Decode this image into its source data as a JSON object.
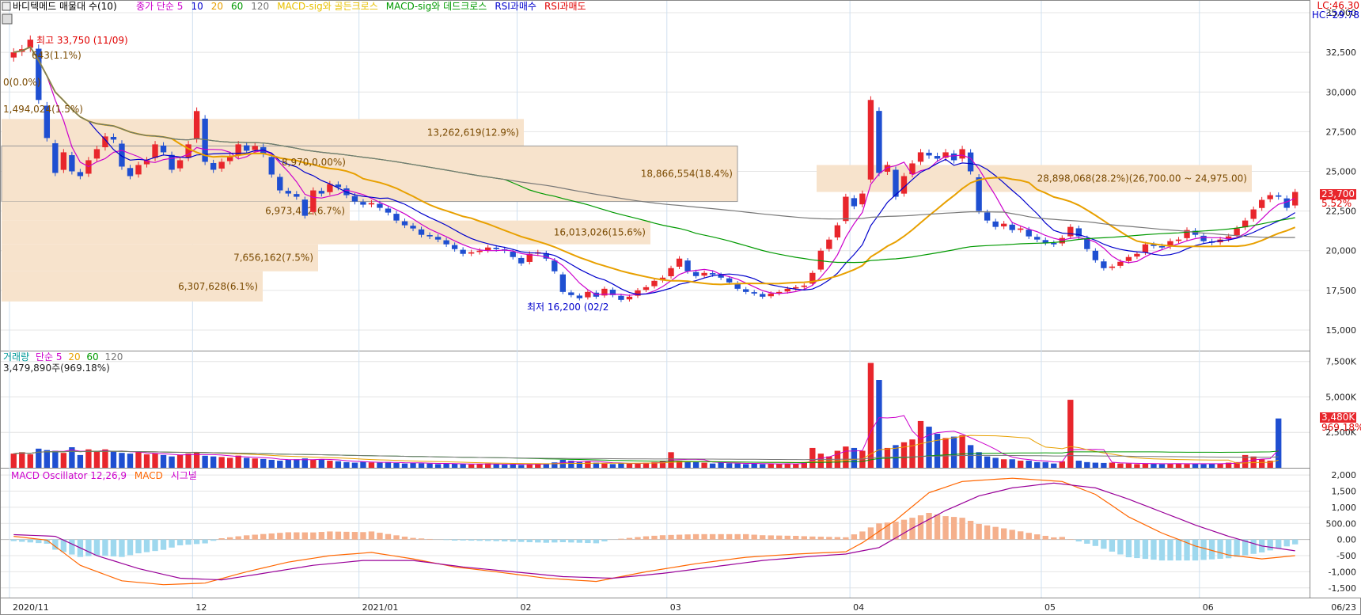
{
  "header": {
    "indicator_title": "바디텍메드 매물대 수(10)",
    "legend": [
      {
        "text": "종가 단순 5",
        "color": "#cc00cc"
      },
      {
        "text": "10",
        "color": "#0000cc"
      },
      {
        "text": "20",
        "color": "#e8a000"
      },
      {
        "text": "60",
        "color": "#009900"
      },
      {
        "text": "120",
        "color": "#777777"
      },
      {
        "text": "MACD-sig와 골든크로스",
        "color": "#e8c000"
      },
      {
        "text": "MACD-sig와 데드크로스",
        "color": "#009900"
      },
      {
        "text": "RSI과매수",
        "color": "#0000cc"
      },
      {
        "text": "RSI과매도",
        "color": "#e00000"
      }
    ],
    "lc": "LC:46.30",
    "hc": "HC:-29.78"
  },
  "annotations": {
    "high": "최고 33,750 (11/09)",
    "low": "최저 16,200 (02/2",
    "current_price": "23,700",
    "current_pct": "5.52%",
    "partial": [
      "643(1.1%)",
      "0(0.0%)",
      "1,494,024(1.5%)",
      "8,970,0.00%)"
    ]
  },
  "volume_panel": {
    "legend": [
      {
        "text": "거래량",
        "color": "#009999"
      },
      {
        "text": "단순 5",
        "color": "#cc00cc"
      },
      {
        "text": "20",
        "color": "#e8a000"
      },
      {
        "text": "60",
        "color": "#009900"
      },
      {
        "text": "120",
        "color": "#777777"
      }
    ],
    "current": "3,479,890주(969.18%)",
    "badge": "3,480K",
    "badge_pct": "969.18%"
  },
  "macd_panel": {
    "legend": [
      {
        "text": "MACD Oscillator 12,26,9",
        "color": "#cc00cc"
      },
      {
        "text": "MACD",
        "color": "#ff6600"
      },
      {
        "text": "시그널",
        "color": "#cc00cc"
      }
    ]
  },
  "x_axis": {
    "labels": [
      "2020/11",
      "12",
      "2021/01",
      "02",
      "03",
      "04",
      "05",
      "06",
      "06/23"
    ]
  },
  "colors": {
    "up": "#e8262c",
    "down": "#1f4fd1",
    "ma5": "#cc00cc",
    "ma10": "#0000cc",
    "ma20": "#e8a000",
    "ma60": "#009900",
    "ma120": "#777777",
    "vp": "#f7e3cc"
  },
  "chart_data": [
    {
      "type": "candlestick",
      "title": "바디텍메드",
      "y_ticks": [
        15000,
        17500,
        20000,
        22500,
        25000,
        27500,
        30000,
        32500,
        35000
      ],
      "y_tick_labels": [
        "15,000",
        "17,500",
        "20,000",
        "22,500",
        "25,000",
        "27,500",
        "30,000",
        "32,500",
        "35,000"
      ],
      "ylim": [
        13700,
        35700
      ],
      "volume_profile": [
        {
          "price_from": 26600,
          "price_to": 28300,
          "label": "13,262,619(12.9%)"
        },
        {
          "price_from": 23100,
          "price_to": 26600,
          "label": "18,866,554(18.4%)"
        },
        {
          "price_from": 21900,
          "price_to": 23100,
          "label": "6,973,412(6.7%)"
        },
        {
          "price_from": 20400,
          "price_to": 21900,
          "label": "16,013,026(15.6%)"
        },
        {
          "price_from": 18700,
          "price_to": 20400,
          "label": "7,656,162(7.5%)"
        },
        {
          "price_from": 16800,
          "price_to": 18700,
          "label": "6,307,628(6.1%)"
        },
        {
          "price_from": 23700,
          "price_to": 25400,
          "label": "28,898,068(28.2%)(26,700.00 ~ 24,975.00)"
        }
      ],
      "closes": [
        32500,
        32700,
        33300,
        29500,
        27100,
        24900,
        26200,
        25000,
        24700,
        25700,
        26400,
        27200,
        27000,
        25300,
        24700,
        25400,
        25700,
        26700,
        26200,
        25100,
        25700,
        26700,
        28800,
        25600,
        25100,
        25600,
        25900,
        26700,
        26300,
        26600,
        26100,
        24800,
        23800,
        23600,
        23400,
        22200,
        23800,
        23600,
        24200,
        24000,
        23500,
        23100,
        22900,
        23000,
        22700,
        22400,
        21900,
        21600,
        21400,
        21000,
        20900,
        20700,
        20400,
        20100,
        19800,
        19900,
        20000,
        20200,
        20100,
        20000,
        19600,
        19200,
        19800,
        19900,
        19500,
        18700,
        17400,
        17200,
        17000,
        17400,
        17100,
        17600,
        17200,
        16900,
        17100,
        17500,
        17700,
        18100,
        18300,
        18900,
        19500,
        18700,
        18400,
        18600,
        18500,
        18300,
        18000,
        17600,
        17400,
        17300,
        17100,
        17300,
        17400,
        17600,
        17700,
        17800,
        18600,
        20000,
        20700,
        21600,
        23400,
        22800,
        23600,
        29500,
        24900,
        25400,
        23400,
        24700,
        25500,
        26200,
        26000,
        25800,
        26200,
        25700,
        26400,
        25000,
        22500,
        21900,
        21500,
        21700,
        21300,
        21400,
        20900,
        20700,
        20500,
        20400,
        20800,
        21500,
        20900,
        20100,
        19400,
        18900,
        19000,
        19300,
        19600,
        19800,
        20400,
        20300,
        20200,
        20600,
        20700,
        21300,
        21000,
        20600,
        20500,
        20700,
        20900,
        21400,
        21900,
        22600,
        23200,
        23500,
        23400,
        22700,
        23700
      ],
      "volume_k": [
        1000,
        1100,
        950,
        1350,
        1250,
        1200,
        1050,
        1450,
        900,
        1300,
        1150,
        1300,
        1150,
        1050,
        1000,
        1100,
        950,
        1000,
        900,
        800,
        900,
        1000,
        1100,
        850,
        800,
        760,
        700,
        860,
        700,
        660,
        620,
        560,
        500,
        560,
        600,
        660,
        560,
        600,
        500,
        460,
        400,
        360,
        420,
        380,
        360,
        400,
        340,
        300,
        360,
        320,
        300,
        260,
        300,
        280,
        260,
        240,
        260,
        300,
        260,
        220,
        240,
        200,
        260,
        300,
        300,
        380,
        560,
        500,
        400,
        460,
        360,
        300,
        260,
        320,
        300,
        340,
        360,
        400,
        500,
        1100,
        500,
        460,
        400,
        360,
        300,
        360,
        320,
        300,
        260,
        300,
        260,
        300,
        260,
        300,
        260,
        400,
        1400,
        1000,
        800,
        1200,
        1500,
        1400,
        1200,
        7400,
        6200,
        1400,
        1600,
        1800,
        2000,
        3300,
        2900,
        2400,
        2100,
        2200,
        2300,
        1600,
        1100,
        800,
        700,
        600,
        600,
        500,
        500,
        400,
        400,
        300,
        460,
        4800,
        500,
        400,
        360,
        340,
        360,
        300,
        300,
        260,
        300,
        300,
        260,
        300,
        300,
        260,
        300,
        260,
        300,
        300,
        360,
        400,
        900,
        800,
        600,
        500,
        3480
      ]
    },
    {
      "type": "bar",
      "title": "거래량",
      "unit": "K",
      "y_ticks": [
        2500,
        5000,
        7500
      ],
      "y_tick_labels": [
        "2,500K",
        "5,000K",
        "7,500K"
      ],
      "ylim": [
        0,
        8100
      ]
    },
    {
      "type": "line",
      "title": "MACD Oscillator 12,26,9",
      "y_ticks": [
        -1500,
        -1000,
        -500,
        0,
        500,
        1000,
        1500,
        2000
      ],
      "y_tick_labels": [
        "-1,500",
        "-1,000",
        "-500",
        "0.00",
        "500.00",
        "1,000",
        "1,500",
        "2,000"
      ],
      "ylim": [
        -1800,
        2150
      ],
      "series": [
        {
          "name": "MACD",
          "points": [
            [
              0,
              100
            ],
            [
              4,
              -20
            ],
            [
              8,
              -800
            ],
            [
              13,
              -1280
            ],
            [
              18,
              -1400
            ],
            [
              23,
              -1350
            ],
            [
              28,
              -1000
            ],
            [
              33,
              -700
            ],
            [
              38,
              -500
            ],
            [
              43,
              -400
            ],
            [
              48,
              -600
            ],
            [
              53,
              -850
            ],
            [
              58,
              -1000
            ],
            [
              64,
              -1200
            ],
            [
              70,
              -1300
            ],
            [
              76,
              -1000
            ],
            [
              82,
              -750
            ],
            [
              88,
              -550
            ],
            [
              94,
              -450
            ],
            [
              100,
              -380
            ],
            [
              102,
              -100
            ],
            [
              106,
              600
            ],
            [
              110,
              1450
            ],
            [
              114,
              1800
            ],
            [
              120,
              1900
            ],
            [
              126,
              1800
            ],
            [
              130,
              1400
            ],
            [
              134,
              700
            ],
            [
              138,
              200
            ],
            [
              142,
              -200
            ],
            [
              146,
              -480
            ],
            [
              150,
              -600
            ],
            [
              154,
              -500
            ],
            [
              158,
              -350
            ],
            [
              162,
              -200
            ],
            [
              166,
              -50
            ],
            [
              169,
              150
            ],
            [
              172,
              400
            ],
            [
              174,
              550
            ]
          ]
        },
        {
          "name": "시그널",
          "points": [
            [
              0,
              150
            ],
            [
              5,
              100
            ],
            [
              10,
              -500
            ],
            [
              15,
              -900
            ],
            [
              20,
              -1200
            ],
            [
              25,
              -1250
            ],
            [
              30,
              -1050
            ],
            [
              36,
              -800
            ],
            [
              42,
              -650
            ],
            [
              48,
              -650
            ],
            [
              54,
              -850
            ],
            [
              60,
              -1000
            ],
            [
              66,
              -1150
            ],
            [
              72,
              -1200
            ],
            [
              78,
              -1050
            ],
            [
              84,
              -850
            ],
            [
              90,
              -650
            ],
            [
              96,
              -520
            ],
            [
              100,
              -450
            ],
            [
              104,
              -250
            ],
            [
              108,
              350
            ],
            [
              112,
              900
            ],
            [
              116,
              1350
            ],
            [
              120,
              1600
            ],
            [
              125,
              1750
            ],
            [
              130,
              1600
            ],
            [
              134,
              1250
            ],
            [
              138,
              850
            ],
            [
              142,
              450
            ],
            [
              146,
              100
            ],
            [
              150,
              -200
            ],
            [
              154,
              -350
            ],
            [
              158,
              -400
            ],
            [
              162,
              -300
            ],
            [
              166,
              -150
            ],
            [
              170,
              0
            ],
            [
              174,
              250
            ]
          ]
        }
      ]
    }
  ]
}
